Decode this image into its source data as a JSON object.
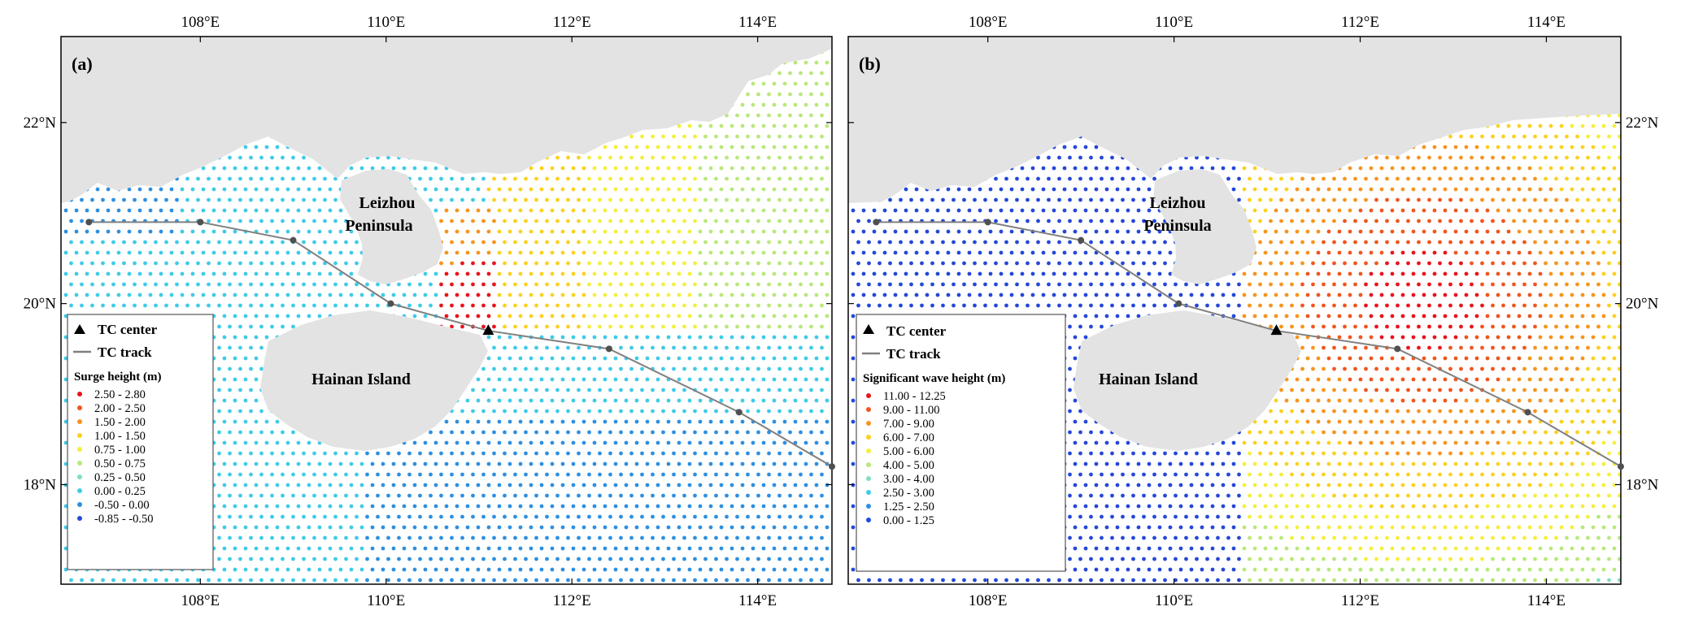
{
  "colors": {
    "land": "#e3e3e3",
    "sea": "#ffffff",
    "track": "#808080",
    "track_point": "#505050",
    "tc_center": "#000000",
    "frame": "#000000"
  },
  "axes": {
    "lon_ticks": [
      "108°E",
      "110°E",
      "112°E",
      "114°E"
    ],
    "lon_values": [
      108,
      110,
      112,
      114
    ],
    "lat_ticks": [
      "22°N",
      "20°N",
      "18°N"
    ],
    "lat_values": [
      22,
      20,
      18
    ],
    "lon_range": [
      106.5,
      114.8
    ],
    "lat_range": [
      16.9,
      22.95
    ]
  },
  "track": {
    "points": [
      [
        106.8,
        20.9
      ],
      [
        108.0,
        20.9
      ],
      [
        109.0,
        20.7
      ],
      [
        110.05,
        20.0
      ],
      [
        111.1,
        19.7
      ],
      [
        112.4,
        19.5
      ],
      [
        113.8,
        18.8
      ],
      [
        114.8,
        18.2
      ]
    ],
    "center": [
      111.1,
      19.7
    ]
  },
  "panels": [
    {
      "id": "a",
      "tag": "(a)",
      "labels": {
        "leizhou_line1": "Leizhou",
        "leizhou_line2": "Peninsula",
        "hainan": "Hainan Island"
      },
      "legend": {
        "tc_center": "TC center",
        "tc_track": "TC track",
        "title": "Surge height (m)",
        "items": [
          {
            "label": "2.50 - 2.80",
            "color": "#e8141c"
          },
          {
            "label": "2.00 - 2.50",
            "color": "#f0561e"
          },
          {
            "label": "1.50 - 2.00",
            "color": "#f7941e"
          },
          {
            "label": "1.00 - 1.50",
            "color": "#fdd020"
          },
          {
            "label": "0.75 - 1.00",
            "color": "#f4ef3c"
          },
          {
            "label": "0.50 - 0.75",
            "color": "#b9e87a"
          },
          {
            "label": "0.25 - 0.50",
            "color": "#7fe0c0"
          },
          {
            "label": "0.00 - 0.25",
            "color": "#3fcbe8"
          },
          {
            "label": "-0.50 - 0.00",
            "color": "#2e8fe0"
          },
          {
            "label": "-0.85 - -0.50",
            "color": "#2448d8"
          }
        ]
      }
    },
    {
      "id": "b",
      "tag": "(b)",
      "labels": {
        "leizhou_line1": "Leizhou",
        "leizhou_line2": "Peninsula",
        "hainan": "Hainan Island"
      },
      "legend": {
        "tc_center": "TC center",
        "tc_track": "TC track",
        "title": "Significant wave height (m)",
        "items": [
          {
            "label": "11.00 - 12.25",
            "color": "#e8141c"
          },
          {
            "label": "9.00 - 11.00",
            "color": "#f0561e"
          },
          {
            "label": "7.00 - 9.00",
            "color": "#f7941e"
          },
          {
            "label": "6.00 - 7.00",
            "color": "#fdd020"
          },
          {
            "label": "5.00 - 6.00",
            "color": "#f4ef3c"
          },
          {
            "label": "4.00 - 5.00",
            "color": "#b9e87a"
          },
          {
            "label": "3.00 - 4.00",
            "color": "#7fe0c0"
          },
          {
            "label": "2.50 - 3.00",
            "color": "#3fcbe8"
          },
          {
            "label": "1.25 - 2.50",
            "color": "#2e8fe0"
          },
          {
            "label": "0.00 - 1.25",
            "color": "#2448d8"
          }
        ]
      }
    }
  ]
}
